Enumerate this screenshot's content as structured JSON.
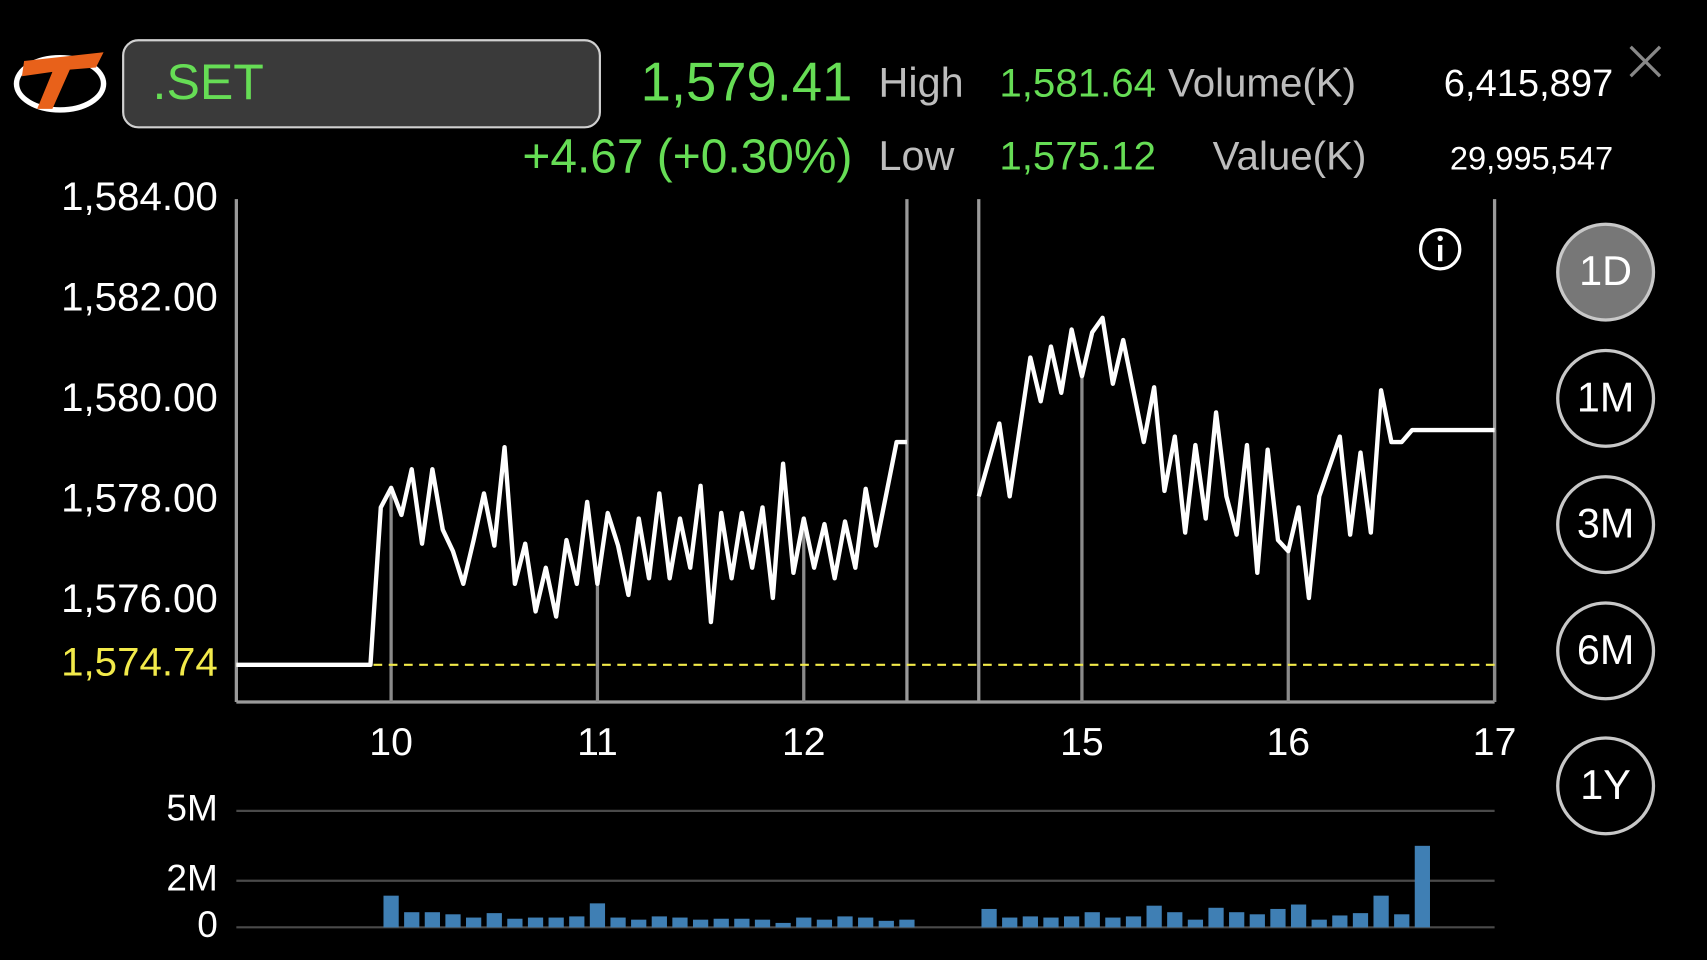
{
  "header": {
    "symbol": ".SET",
    "last": "1,579.41",
    "change": "+4.67 (+0.30%)",
    "high_label": "High",
    "high": "1,581.64",
    "low_label": "Low",
    "low": "1,575.12",
    "volume_label": "Volume(K)",
    "volume": "6,415,897",
    "value_label": "Value(K)",
    "value": "29,995,547"
  },
  "periods": [
    "1D",
    "1M",
    "3M",
    "6M",
    "1Y"
  ],
  "active_period": 0,
  "chart_data": [
    {
      "type": "line",
      "color": "#ffffff",
      "x": [
        9.25,
        9.9,
        9.95,
        10,
        10.05,
        10.1,
        10.15,
        10.2,
        10.25,
        10.3,
        10.35,
        10.4,
        10.45,
        10.5,
        10.55,
        10.6,
        10.65,
        10.7,
        10.75,
        10.8,
        10.85,
        10.9,
        10.95,
        11,
        11.05,
        11.1,
        11.15,
        11.2,
        11.25,
        11.3,
        11.35,
        11.4,
        11.45,
        11.5,
        11.55,
        11.6,
        11.65,
        11.7,
        11.75,
        11.8,
        11.85,
        11.9,
        11.95,
        12,
        12.05,
        12.1,
        12.15,
        12.2,
        12.25,
        12.3,
        12.35,
        12.45,
        12.5,
        null,
        14.5,
        14.6,
        14.65,
        14.75,
        14.8,
        14.85,
        14.9,
        14.95,
        15,
        15.05,
        15.1,
        15.15,
        15.2,
        15.3,
        15.35,
        15.4,
        15.45,
        15.5,
        15.55,
        15.6,
        15.65,
        15.7,
        15.75,
        15.8,
        15.85,
        15.9,
        15.95,
        16,
        16.05,
        16.1,
        16.15,
        16.25,
        16.3,
        16.35,
        16.4,
        16.45,
        16.5,
        16.55,
        16.6,
        17
      ],
      "values": [
        1574.74,
        1574.74,
        1577.87,
        1578.26,
        1577.72,
        1578.63,
        1577.15,
        1578.63,
        1577.43,
        1577.0,
        1576.35,
        1577.22,
        1578.15,
        1577.11,
        1579.07,
        1576.35,
        1577.15,
        1575.8,
        1576.67,
        1575.7,
        1577.22,
        1576.35,
        1577.98,
        1576.35,
        1577.76,
        1577.11,
        1576.13,
        1577.65,
        1576.46,
        1578.15,
        1576.46,
        1577.65,
        1576.67,
        1578.3,
        1575.59,
        1577.76,
        1576.46,
        1577.76,
        1576.67,
        1577.87,
        1576.07,
        1578.74,
        1576.57,
        1577.65,
        1576.67,
        1577.54,
        1576.46,
        1577.59,
        1576.67,
        1578.24,
        1577.11,
        1579.17,
        1579.17,
        null,
        1578.09,
        1579.54,
        1578.09,
        1580.85,
        1579.98,
        1581.07,
        1580.15,
        1581.41,
        1580.48,
        1581.35,
        1581.64,
        1580.33,
        1581.2,
        1579.17,
        1580.26,
        1578.2,
        1579.28,
        1577.37,
        1579.11,
        1577.65,
        1579.76,
        1578.09,
        1577.33,
        1579.11,
        1576.57,
        1579.02,
        1577.22,
        1577.0,
        1577.87,
        1576.07,
        1578.09,
        1579.28,
        1577.33,
        1578.96,
        1577.37,
        1580.2,
        1579.17,
        1579.17,
        1579.41,
        1579.41
      ],
      "xlim": [
        9.25,
        17
      ],
      "xticks": [
        10,
        11,
        12,
        15,
        16,
        17
      ],
      "ylim": [
        1574,
        1584
      ],
      "yticks": [
        {
          "value": 1584,
          "label": "1,584.00"
        },
        {
          "value": 1582,
          "label": "1,582.00"
        },
        {
          "value": 1580,
          "label": "1,580.00"
        },
        {
          "value": 1578,
          "label": "1,578.00"
        },
        {
          "value": 1576,
          "label": "1,576.00"
        }
      ],
      "reference": {
        "value": 1574.74,
        "label": "1,574.74",
        "color": "#f2ea4a"
      },
      "grid": false
    },
    {
      "type": "bar",
      "color": "#3f7fb4",
      "x": [
        10,
        10.1,
        10.2,
        10.3,
        10.4,
        10.5,
        10.6,
        10.7,
        10.8,
        10.9,
        11,
        11.1,
        11.2,
        11.3,
        11.4,
        11.5,
        11.6,
        11.7,
        11.8,
        11.9,
        12,
        12.1,
        12.2,
        12.3,
        12.4,
        12.5,
        14.55,
        14.65,
        14.75,
        14.85,
        14.95,
        15.05,
        15.15,
        15.25,
        15.35,
        15.45,
        15.55,
        15.65,
        15.75,
        15.85,
        15.95,
        16.05,
        16.15,
        16.25,
        16.35,
        16.45,
        16.55,
        16.65
      ],
      "values": [
        1360000,
        650000,
        650000,
        560000,
        420000,
        610000,
        370000,
        420000,
        420000,
        470000,
        1030000,
        420000,
        330000,
        470000,
        420000,
        330000,
        370000,
        370000,
        330000,
        190000,
        420000,
        330000,
        470000,
        420000,
        280000,
        330000,
        790000,
        420000,
        470000,
        420000,
        470000,
        650000,
        420000,
        470000,
        930000,
        650000,
        330000,
        840000,
        650000,
        560000,
        790000,
        980000,
        330000,
        510000,
        610000,
        1360000,
        560000,
        3500000
      ],
      "ylim": [
        0,
        5000000
      ],
      "yticks": [
        {
          "value": 5000000,
          "label": "5M"
        },
        {
          "value": 2000000,
          "label": "2M"
        },
        0
      ],
      "grid": true
    }
  ]
}
